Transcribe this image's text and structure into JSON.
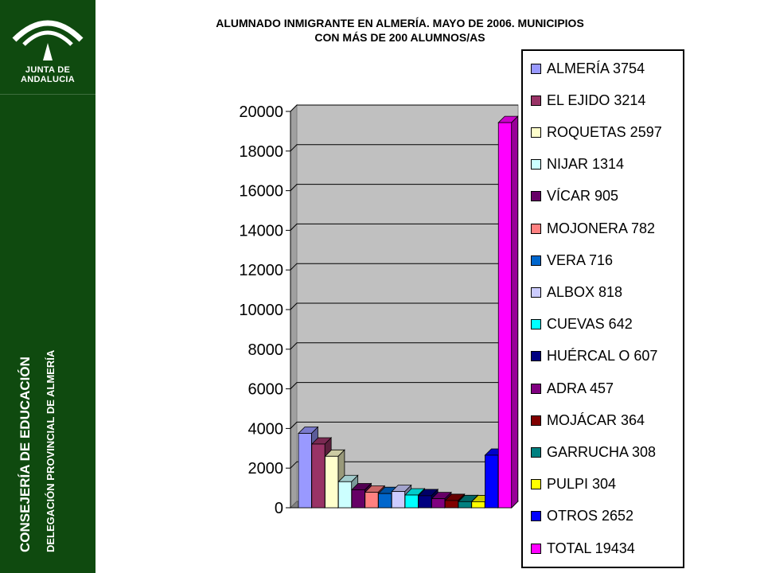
{
  "sidebar": {
    "logo_text": "JUNTA DE ANDALUCIA",
    "vertical_main": "CONSEJERÍA DE EDUCACIÓN",
    "vertical_sub": "DELEGACIÓN PROVINCIAL DE ALMERÍA"
  },
  "chart_data": {
    "type": "bar",
    "title_line1": "ALUMNADO INMIGRANTE EN ALMERÍA. MAYO DE 2006. MUNICIPIOS",
    "title_line2": "CON MÁS DE 200 ALUMNOS/AS",
    "ylim": [
      0,
      20000
    ],
    "yticks": [
      "0",
      "2000",
      "4000",
      "6000",
      "8000",
      "10000",
      "12000",
      "14000",
      "16000",
      "18000",
      "20000"
    ],
    "grid": true,
    "legend_position": "right",
    "series": [
      {
        "label": "ALMERÍA 3754",
        "value": 3754,
        "color": "#9999ff"
      },
      {
        "label": "EL EJIDO 3214",
        "value": 3214,
        "color": "#993366"
      },
      {
        "label": "ROQUETAS 2597",
        "value": 2597,
        "color": "#ffffcc"
      },
      {
        "label": "NIJAR 1314",
        "value": 1314,
        "color": "#ccffff"
      },
      {
        "label": "VÍCAR 905",
        "value": 905,
        "color": "#660066"
      },
      {
        "label": "MOJONERA 782",
        "value": 782,
        "color": "#ff8080"
      },
      {
        "label": "VERA 716",
        "value": 716,
        "color": "#0066cc"
      },
      {
        "label": "ALBOX 818",
        "value": 818,
        "color": "#ccccff"
      },
      {
        "label": "CUEVAS 642",
        "value": 642,
        "color": "#00ffff"
      },
      {
        "label": "HUÉRCAL O 607",
        "value": 607,
        "color": "#000080"
      },
      {
        "label": "ADRA 457",
        "value": 457,
        "color": "#800080"
      },
      {
        "label": "MOJÁCAR 364",
        "value": 364,
        "color": "#800000"
      },
      {
        "label": "GARRUCHA 308",
        "value": 308,
        "color": "#008080"
      },
      {
        "label": "PULPI 304",
        "value": 304,
        "color": "#ffff00"
      },
      {
        "label": "OTROS 2652",
        "value": 2652,
        "color": "#0000ff"
      },
      {
        "label": "TOTAL 19434",
        "value": 19434,
        "color": "#ff00ff"
      }
    ]
  }
}
